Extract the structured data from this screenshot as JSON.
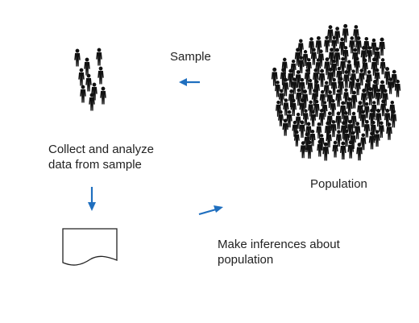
{
  "labels": {
    "sample": "Sample",
    "population": "Population",
    "collect_line1": "Collect and analyze",
    "collect_line2": "data from sample",
    "infer_line1": "Make inferences about",
    "infer_line2": "population"
  },
  "colors": {
    "arrow": "#1f6fbf",
    "figure": "#111111",
    "text": "#222222"
  },
  "icons": {
    "people": "person-icon",
    "report": "document-icon",
    "arrow": "arrow-icon"
  }
}
